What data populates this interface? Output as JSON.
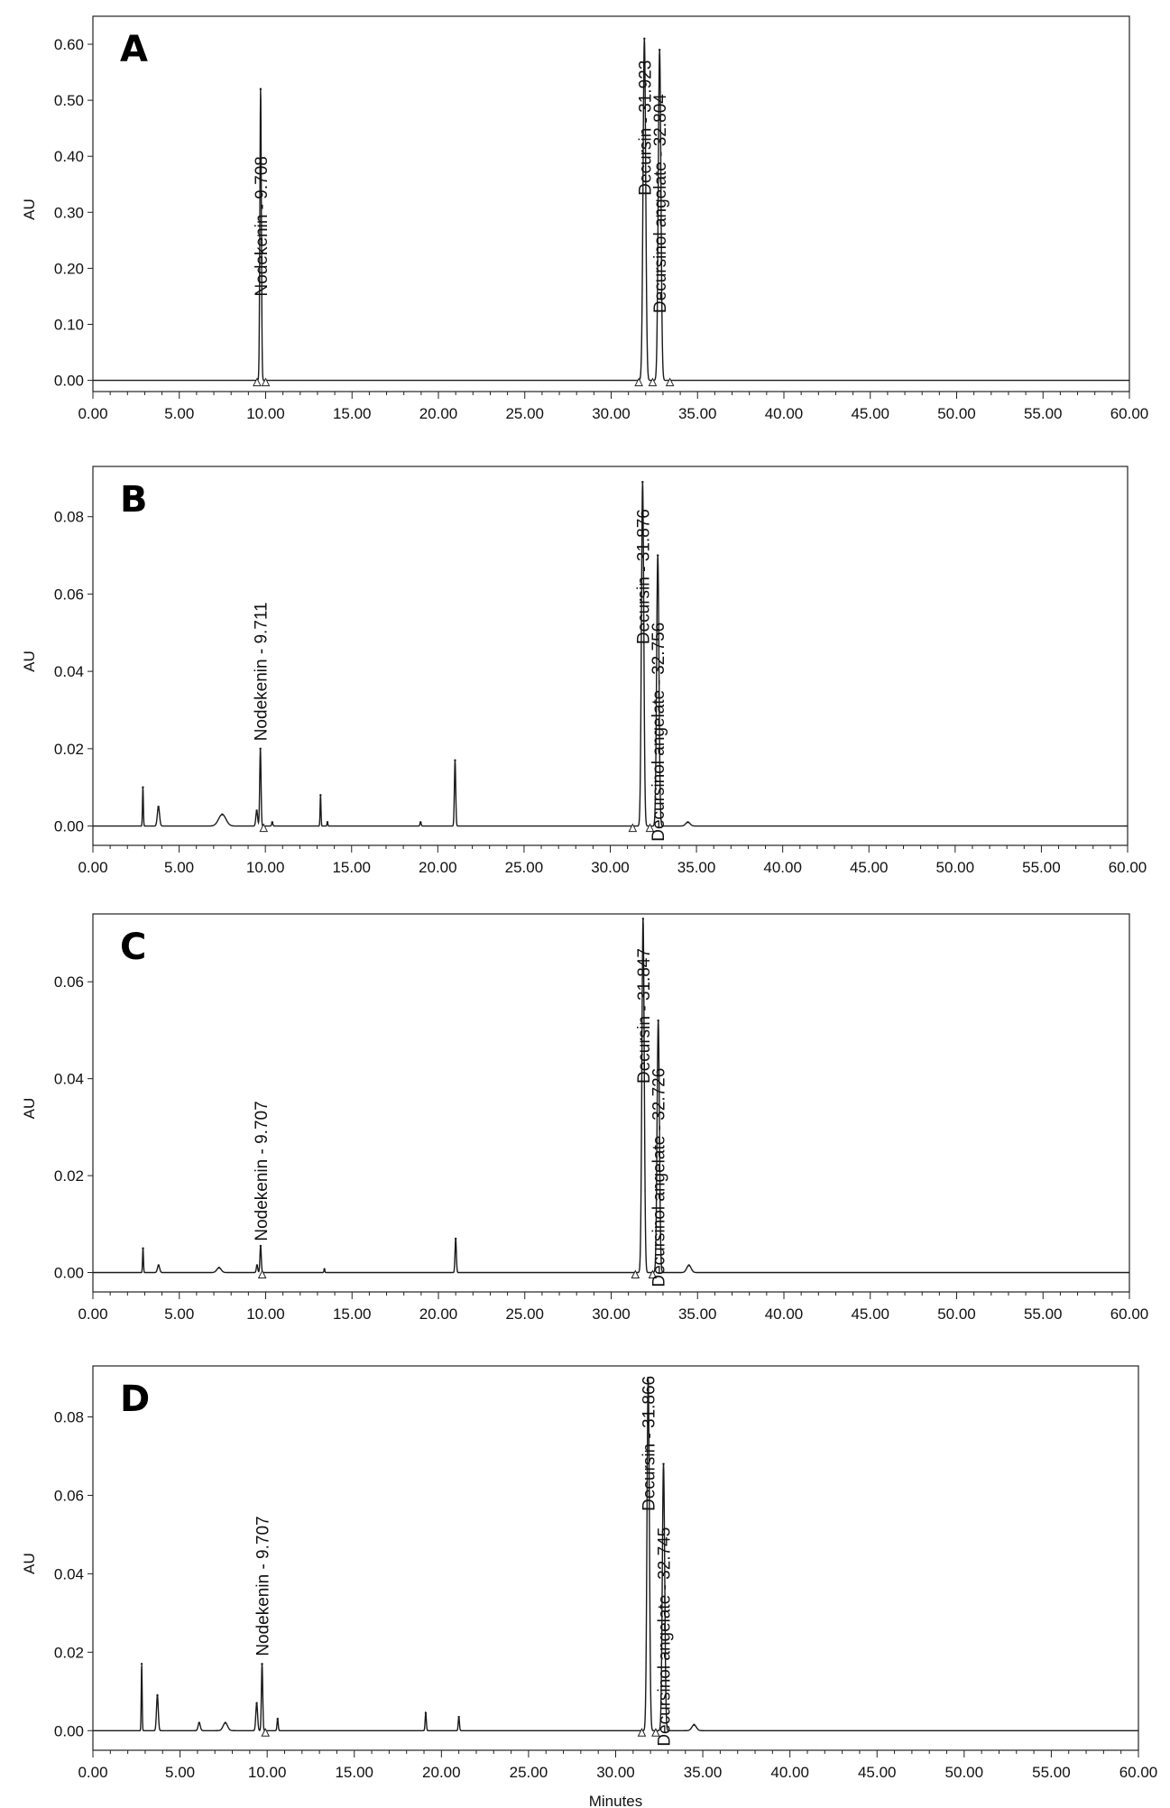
{
  "chart_data": [
    {
      "type": "line",
      "panel_label": "A",
      "xlabel": "",
      "ylabel": "AU",
      "xlim": [
        0,
        60
      ],
      "ylim": [
        -0.02,
        0.65
      ],
      "xticks": [
        "0.00",
        "5.00",
        "10.00",
        "15.00",
        "20.00",
        "25.00",
        "30.00",
        "35.00",
        "40.00",
        "45.00",
        "50.00",
        "55.00",
        "60.00"
      ],
      "yticks": [
        0,
        0.1,
        0.2,
        0.3,
        0.4,
        0.5,
        0.6
      ],
      "ytick_labels": [
        "0.00",
        "0.10",
        "0.20",
        "0.30",
        "0.40",
        "0.50",
        "0.60"
      ],
      "peaks": [
        {
          "x": 9.708,
          "y": 0.52,
          "w": 0.1
        },
        {
          "x": 31.923,
          "y": 0.61,
          "w": 0.18
        },
        {
          "x": 32.804,
          "y": 0.59,
          "w": 0.18
        }
      ],
      "labels": [
        {
          "text": "Nodekenin - 9.708",
          "x": 9.708,
          "y_start": 0.15
        },
        {
          "text": "Decursin - 31.923",
          "x": 31.923,
          "y_start": 0.33
        },
        {
          "text": "Decursinol angelate - 32.804",
          "x": 32.804,
          "y_start": 0.12
        }
      ],
      "markers": [
        9.5,
        10.0,
        31.6,
        32.4,
        33.4
      ]
    },
    {
      "type": "line",
      "panel_label": "B",
      "xlabel": "",
      "ylabel": "AU",
      "xlim": [
        0,
        60
      ],
      "ylim": [
        -0.005,
        0.093
      ],
      "xticks": [
        "0.00",
        "5.00",
        "10.00",
        "15.00",
        "20.00",
        "25.00",
        "30.00",
        "35.00",
        "40.00",
        "45.00",
        "50.00",
        "55.00",
        "60.00"
      ],
      "yticks": [
        0,
        0.02,
        0.04,
        0.06,
        0.08
      ],
      "ytick_labels": [
        "0.00",
        "0.02",
        "0.04",
        "0.06",
        "0.08"
      ],
      "peaks": [
        {
          "x": 2.9,
          "y": 0.01,
          "w": 0.06
        },
        {
          "x": 3.8,
          "y": 0.005,
          "w": 0.15
        },
        {
          "x": 7.5,
          "y": 0.003,
          "w": 0.5
        },
        {
          "x": 9.5,
          "y": 0.004,
          "w": 0.12
        },
        {
          "x": 9.711,
          "y": 0.02,
          "w": 0.09
        },
        {
          "x": 10.4,
          "y": 0.001,
          "w": 0.08
        },
        {
          "x": 13.2,
          "y": 0.008,
          "w": 0.06
        },
        {
          "x": 13.6,
          "y": 0.001,
          "w": 0.06
        },
        {
          "x": 19.0,
          "y": 0.001,
          "w": 0.08
        },
        {
          "x": 21.0,
          "y": 0.017,
          "w": 0.09
        },
        {
          "x": 31.876,
          "y": 0.089,
          "w": 0.16
        },
        {
          "x": 32.756,
          "y": 0.07,
          "w": 0.16
        },
        {
          "x": 34.5,
          "y": 0.001,
          "w": 0.3
        }
      ],
      "labels": [
        {
          "text": "Nodekenin - 9.711",
          "x": 9.711,
          "y_start": 0.022
        },
        {
          "text": "Decursin - 31.876",
          "x": 31.876,
          "y_start": 0.047
        },
        {
          "text": "Decursinol angelate - 32.756",
          "x": 32.756,
          "y_start": -0.004
        }
      ],
      "markers": [
        9.9,
        31.3,
        32.3
      ]
    },
    {
      "type": "line",
      "panel_label": "C",
      "xlabel": "",
      "ylabel": "AU",
      "xlim": [
        0,
        60
      ],
      "ylim": [
        -0.004,
        0.074
      ],
      "xticks": [
        "0.00",
        "5.00",
        "10.00",
        "15.00",
        "20.00",
        "25.00",
        "30.00",
        "35.00",
        "40.00",
        "45.00",
        "50.00",
        "55.00",
        "60.00"
      ],
      "yticks": [
        0,
        0.02,
        0.04,
        0.06
      ],
      "ytick_labels": [
        "0.00",
        "0.02",
        "0.04",
        "0.06"
      ],
      "peaks": [
        {
          "x": 2.9,
          "y": 0.005,
          "w": 0.06
        },
        {
          "x": 3.8,
          "y": 0.0015,
          "w": 0.15
        },
        {
          "x": 7.3,
          "y": 0.001,
          "w": 0.3
        },
        {
          "x": 9.5,
          "y": 0.0015,
          "w": 0.1
        },
        {
          "x": 9.707,
          "y": 0.0055,
          "w": 0.09
        },
        {
          "x": 13.4,
          "y": 0.0007,
          "w": 0.06
        },
        {
          "x": 21.0,
          "y": 0.007,
          "w": 0.09
        },
        {
          "x": 31.847,
          "y": 0.073,
          "w": 0.16
        },
        {
          "x": 32.726,
          "y": 0.052,
          "w": 0.16
        },
        {
          "x": 34.5,
          "y": 0.0015,
          "w": 0.3
        }
      ],
      "labels": [
        {
          "text": "Nodekenin - 9.707",
          "x": 9.707,
          "y_start": 0.0065
        },
        {
          "text": "Decursin - 31.847",
          "x": 31.847,
          "y_start": 0.039
        },
        {
          "text": "Decursinol angelate - 32.726",
          "x": 32.726,
          "y_start": -0.003
        }
      ],
      "markers": [
        9.8,
        31.4,
        32.4
      ]
    },
    {
      "type": "line",
      "panel_label": "D",
      "xlabel": "Minutes",
      "ylabel": "AU",
      "xlim": [
        0,
        60
      ],
      "ylim": [
        -0.005,
        0.093
      ],
      "xticks": [
        "0.00",
        "5.00",
        "10.00",
        "15.00",
        "20.00",
        "25.00",
        "30.00",
        "35.00",
        "40.00",
        "45.00",
        "50.00",
        "55.00",
        "60.00"
      ],
      "yticks": [
        0,
        0.02,
        0.04,
        0.06,
        0.08
      ],
      "ytick_labels": [
        "0.00",
        "0.02",
        "0.04",
        "0.06",
        "0.08"
      ],
      "peaks": [
        {
          "x": 2.8,
          "y": 0.017,
          "w": 0.06
        },
        {
          "x": 3.7,
          "y": 0.009,
          "w": 0.12
        },
        {
          "x": 6.1,
          "y": 0.002,
          "w": 0.15
        },
        {
          "x": 7.6,
          "y": 0.002,
          "w": 0.3
        },
        {
          "x": 9.4,
          "y": 0.007,
          "w": 0.12
        },
        {
          "x": 9.707,
          "y": 0.017,
          "w": 0.09
        },
        {
          "x": 10.6,
          "y": 0.003,
          "w": 0.08
        },
        {
          "x": 19.1,
          "y": 0.0045,
          "w": 0.08
        },
        {
          "x": 21.0,
          "y": 0.0035,
          "w": 0.08
        },
        {
          "x": 31.866,
          "y": 0.09,
          "w": 0.16
        },
        {
          "x": 32.745,
          "y": 0.068,
          "w": 0.16
        },
        {
          "x": 34.5,
          "y": 0.0015,
          "w": 0.3
        }
      ],
      "labels": [
        {
          "text": "Nodekenin - 9.707",
          "x": 9.707,
          "y_start": 0.019
        },
        {
          "text": "Decursin - 31.866",
          "x": 31.866,
          "y_start": 0.056
        },
        {
          "text": "Decursinol angelate - 32.745",
          "x": 32.745,
          "y_start": -0.004
        }
      ],
      "markers": [
        9.9,
        31.5,
        32.3
      ]
    }
  ]
}
